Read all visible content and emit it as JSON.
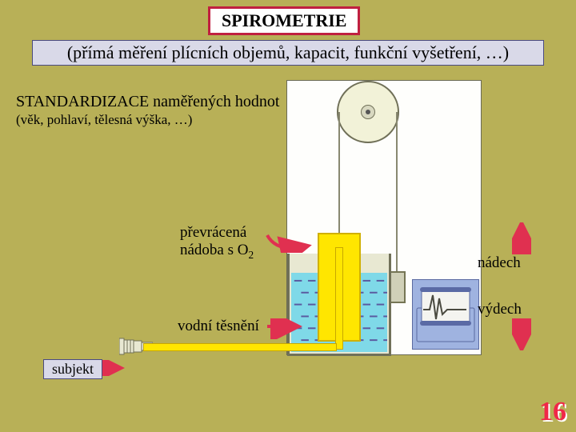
{
  "colors": {
    "slide_bg": "#b8b057",
    "title_border": "#c02040",
    "title_bg": "#ffffff",
    "subtitle_bg": "#d9d9e8",
    "subtitle_border": "#4a4a80",
    "subject_bg": "#d9d9e8",
    "subject_border": "#4a4a80",
    "diagram_bg": "#fefefc",
    "diagram_border": "#6a6a55",
    "pulley_fill": "#f2f2d8",
    "pulley_border": "#707058",
    "pulley_inner": "#d8d8c0",
    "pulley_center": "#555",
    "rope": "#888870",
    "weight_fill": "#d0d0b8",
    "weight_border": "#757555",
    "yellow_block": "#ffe600",
    "yellow_border": "#d0b000",
    "tank_fill": "#e8e8d2",
    "tank_border": "#707058",
    "water_fill": "#7fd9e8",
    "water_border": "#3a9ab0",
    "water_dash": "#5a5aa0",
    "tube_fill": "#ffe600",
    "tube_border": "#c8a800",
    "recorder_fill": "#9fb3e0",
    "recorder_border": "#5a6aa0",
    "recorder_dark": "#5a6aa5",
    "recorder_paper": "#f4f4f0",
    "recorder_trace": "#4a4a40",
    "arrow_red": "#e03050",
    "page_num_text": "#f02848",
    "page_num_shadow": "#ffffff",
    "text": "#000000"
  },
  "title": "SPIROMETRIE",
  "subtitle": "(přímá měření plícních  objemů, kapacit, funkční vyšetření, …)",
  "std_heading": "STANDARDIZACE naměřených hodnot",
  "std_sub": "(věk, pohlaví, tělesná výška, …)",
  "label_o2_line1": "převrácená",
  "label_o2_line2_a": "nádoba s O",
  "label_o2_line2_b": "2",
  "label_seal": "vodní těsnění",
  "label_inhale": "nádech",
  "label_exhale": "výdech",
  "subject": "subjekt",
  "page_number": "16",
  "fonts": {
    "title_size": 22,
    "subtitle_size": 22,
    "heading_size": 20,
    "sub_size": 17,
    "label_size": 19,
    "subject_size": 18,
    "pagenum_size": 34
  }
}
